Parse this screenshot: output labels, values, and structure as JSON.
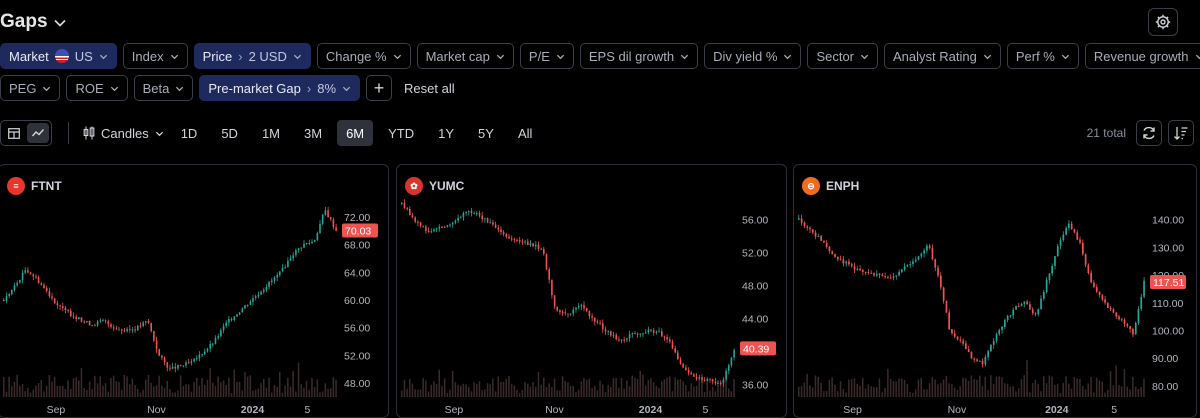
{
  "screen": {
    "title": "Gaps",
    "colors": {
      "background": "#000000",
      "active_chip": "#1e2a5e",
      "up": "#26a69a",
      "down": "#ef5350",
      "volume": "#3b2a2a"
    }
  },
  "filters": {
    "row1": [
      {
        "label": "Market",
        "value": "US",
        "active": true,
        "flag": true
      },
      {
        "label": "Index",
        "active": false
      },
      {
        "label": "Price",
        "value": "2 USD",
        "arrow": "›",
        "active": true
      },
      {
        "label": "Change %",
        "active": false
      },
      {
        "label": "Market cap",
        "active": false
      },
      {
        "label": "P/E",
        "active": false
      },
      {
        "label": "EPS dil growth",
        "active": false
      },
      {
        "label": "Div yield %",
        "active": false
      },
      {
        "label": "Sector",
        "active": false
      },
      {
        "label": "Analyst Rating",
        "active": false
      },
      {
        "label": "Perf %",
        "active": false
      },
      {
        "label": "Revenue growth",
        "active": false
      }
    ],
    "row2": [
      {
        "label": "PEG",
        "active": false
      },
      {
        "label": "ROE",
        "active": false
      },
      {
        "label": "Beta",
        "active": false
      },
      {
        "label": "Pre-market Gap",
        "value": "8%",
        "arrow": "›",
        "active": true
      }
    ],
    "plus_icon": "+",
    "reset_label": "Reset all"
  },
  "toolbar": {
    "chart_type": "Candles",
    "periods": [
      "1D",
      "5D",
      "1M",
      "3M",
      "6M",
      "YTD",
      "1Y",
      "5Y",
      "All"
    ],
    "active_period": "6M",
    "total": "21 total"
  },
  "chart_data": [
    {
      "type": "candlestick",
      "symbol": "FTNT",
      "logo_color": "#e8362b",
      "y_ticks": [
        "72.00",
        "68.00",
        "64.00",
        "60.00",
        "56.00",
        "52.00",
        "48.00"
      ],
      "ylim": [
        46,
        74
      ],
      "last_price": "70.03",
      "x_ticks": [
        "Sep",
        "Nov",
        "2024",
        "5"
      ],
      "path": [
        60,
        62,
        64.5,
        63,
        61,
        59,
        58,
        57,
        56.5,
        57,
        56,
        55.5,
        56,
        57,
        52,
        50,
        50.5,
        51,
        52.5,
        54,
        56.5,
        58,
        59.5,
        61,
        62.5,
        64,
        66.5,
        68,
        68.5,
        73,
        70.03
      ]
    },
    {
      "type": "candlestick",
      "symbol": "YUMC",
      "logo_color": "#d9342b",
      "y_ticks": [
        "56.00",
        "52.00",
        "48.00",
        "44.00",
        "40.00",
        "36.00"
      ],
      "ylim": [
        34.5,
        58
      ],
      "last_price": "40.39",
      "x_ticks": [
        "Sep",
        "Nov",
        "2024",
        "5"
      ],
      "path": [
        58,
        56,
        54.5,
        55,
        55.5,
        57,
        56.5,
        55.5,
        54,
        53.5,
        53,
        52.5,
        45,
        44.5,
        45.5,
        44,
        42.5,
        41.5,
        42,
        42.5,
        42.5,
        41,
        38,
        37,
        36.5,
        36,
        40.39
      ]
    },
    {
      "type": "candlestick",
      "symbol": "ENPH",
      "logo_color": "#f36b1c",
      "y_ticks": [
        "140.00",
        "130.00",
        "120.00",
        "110.00",
        "100.00",
        "90.00",
        "80.00"
      ],
      "ylim": [
        76,
        146
      ],
      "last_price": "117.51",
      "x_ticks": [
        "Sep",
        "Nov",
        "2024",
        "5"
      ],
      "path": [
        140,
        136,
        133,
        128,
        125,
        123,
        121,
        120,
        119,
        120,
        123,
        126,
        131,
        118,
        100,
        96,
        90,
        88,
        96,
        103,
        108,
        110,
        105,
        118,
        130,
        139,
        132,
        118,
        112,
        107,
        103,
        99,
        117.51
      ]
    }
  ]
}
